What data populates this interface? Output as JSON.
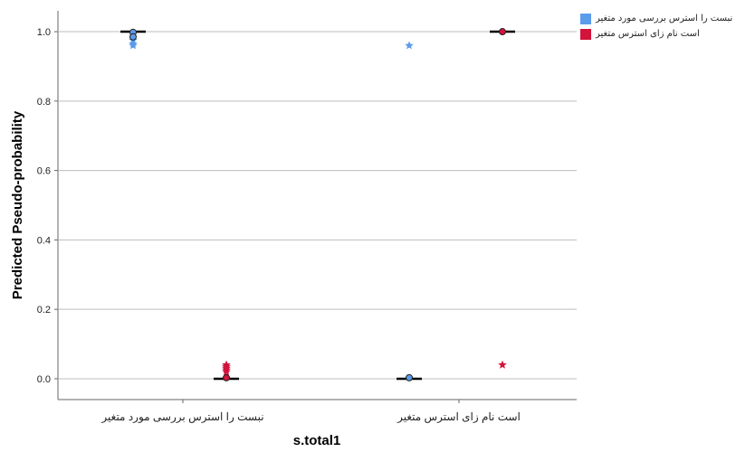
{
  "chart_data": {
    "type": "boxplot",
    "xlabel": "s.total1",
    "ylabel": "Predicted Pseudo-probability",
    "ylim": [
      -0.06,
      1.06
    ],
    "yticks": [
      0.0,
      0.2,
      0.4,
      0.6,
      0.8,
      1.0
    ],
    "ytick_labels": [
      "0.0",
      "0.2",
      "0.4",
      "0.6",
      "0.8",
      "1.0"
    ],
    "categories": [
      "نبست را استرس بررسی مورد متغیر",
      "است نام زای استرس متغیر"
    ],
    "grid": true,
    "legend_position": "top-right",
    "series": [
      {
        "name": "نبست را استرس بررسی مورد متغیر",
        "color": "#5b9bea",
        "boxes": [
          {
            "category": 0,
            "median": 1.0,
            "outliers": [
              0.998,
              0.985
            ],
            "extremes": [
              0.975,
              0.965,
              0.96
            ]
          },
          {
            "category": 1,
            "median": 0.0,
            "outliers": [
              0.003
            ],
            "extremes": [
              0.96
            ]
          }
        ]
      },
      {
        "name": "است نام زای استرس متغیر",
        "color": "#d2133c",
        "boxes": [
          {
            "category": 0,
            "median": 0.0,
            "outliers": [
              0.003
            ],
            "extremes": [
              0.04,
              0.035,
              0.03,
              0.025,
              0.02
            ]
          },
          {
            "category": 1,
            "median": 1.0,
            "outliers": [
              1.0
            ],
            "extremes": [
              0.04
            ]
          }
        ]
      }
    ]
  }
}
